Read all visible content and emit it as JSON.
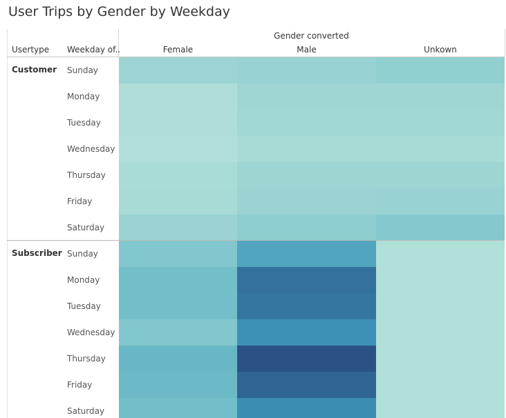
{
  "chart_data": {
    "type": "heatmap",
    "title": "User Trips by Gender by Weekday",
    "column_group_label": "Gender converted",
    "row_headers": [
      "Usertype",
      "Weekday of.."
    ],
    "columns": [
      "Female",
      "Male",
      "Unkown"
    ],
    "weekdays": [
      "Sunday",
      "Monday",
      "Tuesday",
      "Wednesday",
      "Thursday",
      "Friday",
      "Saturday"
    ],
    "groups": [
      {
        "usertype": "Customer",
        "values": [
          [
            0.2,
            0.22,
            0.26
          ],
          [
            0.1,
            0.18,
            0.18
          ],
          [
            0.1,
            0.17,
            0.17
          ],
          [
            0.08,
            0.13,
            0.13
          ],
          [
            0.12,
            0.19,
            0.19
          ],
          [
            0.13,
            0.21,
            0.22
          ],
          [
            0.21,
            0.27,
            0.33
          ]
        ]
      },
      {
        "usertype": "Subscriber",
        "values": [
          [
            0.34,
            0.6,
            0.08
          ],
          [
            0.42,
            0.86,
            0.08
          ],
          [
            0.42,
            0.84,
            0.08
          ],
          [
            0.34,
            0.72,
            0.08
          ],
          [
            0.48,
            1.0,
            0.08
          ],
          [
            0.46,
            0.92,
            0.08
          ],
          [
            0.42,
            0.74,
            0.08
          ]
        ]
      }
    ],
    "color_scale": [
      "#c0e8db",
      "#2b5285"
    ]
  }
}
